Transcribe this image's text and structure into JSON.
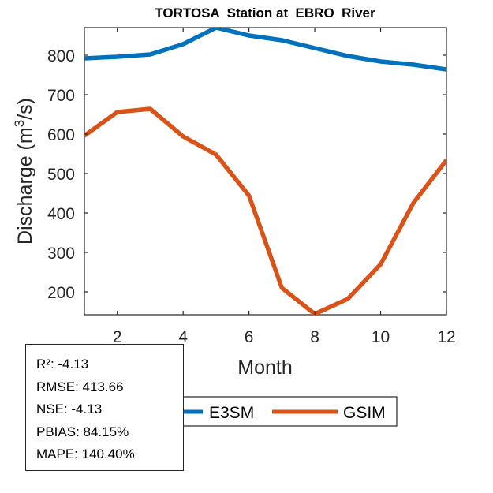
{
  "chart_data": {
    "type": "line",
    "title": "TORTOSA  Station at  EBRO  River",
    "xlabel": "Month",
    "ylabel": "Discharge (m",
    "ylabel_sup": "3",
    "ylabel_tail": "/s)",
    "xlim": [
      1,
      12
    ],
    "ylim": [
      142,
      870
    ],
    "xticks": [
      2,
      4,
      6,
      8,
      10,
      12
    ],
    "yticks": [
      200,
      300,
      400,
      500,
      600,
      700,
      800
    ],
    "grid": false,
    "legend_position": "bottom-center",
    "x": [
      1,
      2,
      3,
      4,
      5,
      6,
      7,
      8,
      9,
      10,
      11,
      12
    ],
    "series": [
      {
        "name": "E3SM",
        "color": "#0072BD",
        "values": [
          792,
          796,
          802,
          828,
          870,
          850,
          838,
          818,
          798,
          784,
          776,
          764
        ]
      },
      {
        "name": "GSIM",
        "color": "#D95319",
        "values": [
          596,
          656,
          664,
          594,
          548,
          444,
          210,
          144,
          182,
          270,
          426,
          534
        ]
      }
    ]
  },
  "stats": [
    "R²: -4.13",
    "RMSE: 413.66",
    "NSE: -4.13",
    "PBIAS: 84.15%",
    "MAPE: 140.40%"
  ]
}
